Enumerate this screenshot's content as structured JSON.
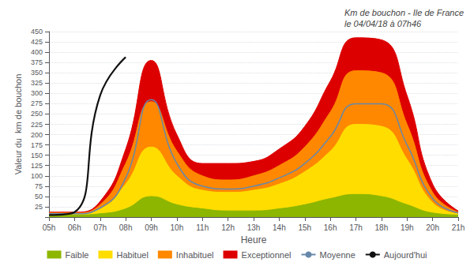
{
  "chart_data": {
    "type": "area",
    "title": "Km de bouchon - Ile de France\nle 04/04/18 à 07h46",
    "xlabel": "Heure",
    "ylabel": "Valeur du  km de bouchon",
    "x": [
      0,
      1,
      2,
      3,
      4,
      5,
      6,
      7,
      8,
      9,
      10,
      11,
      12,
      13,
      14,
      15,
      16
    ],
    "xlim": [
      0,
      16
    ],
    "xticks": [
      {
        "value": 0,
        "label": "05h"
      },
      {
        "value": 1,
        "label": "06h"
      },
      {
        "value": 2,
        "label": "07h"
      },
      {
        "value": 3,
        "label": "08h"
      },
      {
        "value": 4,
        "label": "09h"
      },
      {
        "value": 5,
        "label": "10h"
      },
      {
        "value": 6,
        "label": "11h"
      },
      {
        "value": 7,
        "label": "12h"
      },
      {
        "value": 8,
        "label": "13h"
      },
      {
        "value": 9,
        "label": "14h"
      },
      {
        "value": 10,
        "label": "15h"
      },
      {
        "value": 11,
        "label": "16h"
      },
      {
        "value": 12,
        "label": "17h"
      },
      {
        "value": 13,
        "label": "18h"
      },
      {
        "value": 14,
        "label": "19h"
      },
      {
        "value": 15,
        "label": "20h"
      },
      {
        "value": 16,
        "label": "21h"
      }
    ],
    "ylim": [
      0,
      450
    ],
    "yticks": [
      25,
      50,
      75,
      100,
      125,
      150,
      175,
      200,
      225,
      250,
      275,
      300,
      325,
      350,
      375,
      400,
      425,
      450
    ],
    "grid": "y",
    "legend": "bottom",
    "series": [
      {
        "name": "Faible",
        "type": "area",
        "color": "#8db600",
        "values": [
          5,
          5,
          8,
          20,
          50,
          30,
          20,
          15,
          15,
          20,
          30,
          45,
          55,
          50,
          30,
          10,
          5
        ]
      },
      {
        "name": "Habituel",
        "type": "area",
        "color": "#ffdd00",
        "values": [
          8,
          8,
          20,
          80,
          170,
          100,
          65,
          60,
          65,
          80,
          110,
          160,
          225,
          220,
          140,
          35,
          8
        ]
      },
      {
        "name": "Inhabituel",
        "type": "area",
        "color": "#ff8800",
        "values": [
          10,
          10,
          30,
          130,
          280,
          160,
          100,
          90,
          100,
          125,
          170,
          255,
          355,
          350,
          225,
          60,
          12
        ]
      },
      {
        "name": "Exceptionnel",
        "type": "area",
        "color": "#dd0000",
        "values": [
          12,
          12,
          38,
          165,
          380,
          200,
          130,
          130,
          135,
          165,
          220,
          330,
          435,
          430,
          295,
          80,
          15
        ]
      },
      {
        "name": "Moyenne",
        "type": "line",
        "color": "#6688aa",
        "values": [
          8,
          8,
          22,
          95,
          285,
          130,
          75,
          68,
          75,
          95,
          130,
          195,
          275,
          275,
          175,
          45,
          10
        ]
      },
      {
        "name": "Aujourd'hui",
        "type": "line",
        "color": "#111111",
        "values": [
          5,
          12,
          295,
          388,
          null,
          null,
          null,
          null,
          null,
          null,
          null,
          null,
          null,
          null,
          null,
          null,
          null
        ]
      }
    ]
  }
}
